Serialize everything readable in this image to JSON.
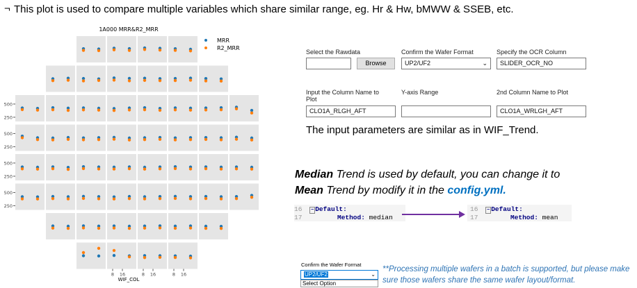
{
  "header": {
    "bullet": "¬",
    "text": "This plot is used to compare multiple variables which share similar range, eg. Hr & Hw, bMWW & SSEB, etc."
  },
  "chart_data": {
    "type": "scatter",
    "title": "1A000 MRR&R2_MRR",
    "xlabel": "WIF_COL",
    "ylim": [
      170,
      670
    ],
    "yticks": [
      250,
      500
    ],
    "xticks": [
      8,
      16
    ],
    "series": [
      {
        "name": "MRR",
        "color": "#1f77b4",
        "values": [
          [
            430,
            425,
            440,
            432,
            445,
            438,
            430,
            420
          ],
          [
            420,
            430,
            425,
            418,
            435,
            428,
            430,
            422,
            426,
            432,
            424,
            418
          ],
          [
            425,
            418,
            430,
            422,
            428,
            420,
            415,
            425,
            430,
            418,
            428,
            422,
            426,
            430,
            440,
            380
          ],
          [
            450,
            420,
            415,
            425,
            418,
            422,
            428,
            415,
            420,
            426,
            418,
            422,
            424,
            420,
            430,
            415
          ],
          [
            425,
            420,
            428,
            418,
            430,
            425,
            422,
            428,
            420,
            426,
            430,
            424,
            428,
            422,
            426,
            420
          ],
          [
            420,
            418,
            425,
            420,
            428,
            422,
            418,
            425,
            420,
            424,
            428,
            422,
            426,
            420,
            424,
            445
          ],
          [
            425,
            420,
            428,
            422,
            426,
            420,
            424,
            428,
            422,
            426,
            420,
            418
          ],
          [
            420,
            415,
            425,
            418,
            422,
            420,
            418,
            412
          ]
        ]
      },
      {
        "name": "R2_MRR",
        "color": "#ff7f0e",
        "values": [
          [
            400,
            395,
            410,
            398,
            415,
            405,
            400,
            390
          ],
          [
            385,
            392,
            380,
            388,
            395,
            382,
            390,
            384,
            387,
            393,
            380,
            376
          ],
          [
            395,
            385,
            392,
            380,
            390,
            385,
            378,
            388,
            392,
            382,
            390,
            384,
            388,
            392,
            410,
            330
          ],
          [
            420,
            385,
            380,
            390,
            382,
            385,
            392,
            378,
            384,
            390,
            380,
            385,
            388,
            382,
            392,
            378
          ],
          [
            390,
            385,
            392,
            380,
            394,
            388,
            386,
            392,
            384,
            390,
            395,
            388,
            392,
            386,
            390,
            385
          ],
          [
            380,
            378,
            385,
            380,
            388,
            382,
            378,
            385,
            380,
            384,
            388,
            382,
            386,
            380,
            384,
            410
          ],
          [
            385,
            380,
            388,
            382,
            386,
            380,
            384,
            388,
            382,
            386,
            380,
            378
          ],
          [
            480,
            560,
            520,
            400,
            385,
            390,
            386,
            380
          ]
        ]
      }
    ]
  },
  "form": {
    "rawdata_label": "Select the Rawdata",
    "browse": "Browse",
    "format_label": "Confirm the Wafer Format",
    "format_value": "UP2/UF2",
    "ocr_label": "Specify the OCR Column",
    "ocr_value": "SLIDER_OCR_NO",
    "col_label": "Input the Column Name to Plot",
    "col_value": "CLO1A_RLGH_AFT",
    "yrange_label": "Y-axis Range",
    "col2_label": "2nd Column Name to Plot",
    "col2_value": "CLO1A_WRLGH_AFT"
  },
  "caption": "The input parameters are similar as in WIF_Trend.",
  "note": {
    "w1": "Median",
    "t1": " Trend is used by default, you can change it to",
    "w2": "Mean",
    "t2": " Trend by modify it in the ",
    "w3": "config.yml."
  },
  "code_left": {
    "l1": "16",
    "l2": "17",
    "key": "Default:",
    "method": "Method:",
    "value": "median"
  },
  "code_right": {
    "l1": "16",
    "l2": "17",
    "key": "Default:",
    "method": "Method:",
    "value": "mean"
  },
  "bottom": {
    "label": "Confirm the Wafer Format",
    "value": "UP2/UF2",
    "option": "Select Option",
    "text": "**Processing multiple wafers in a batch is supported, but please make sure those wafers share the same wafer layout/format."
  }
}
